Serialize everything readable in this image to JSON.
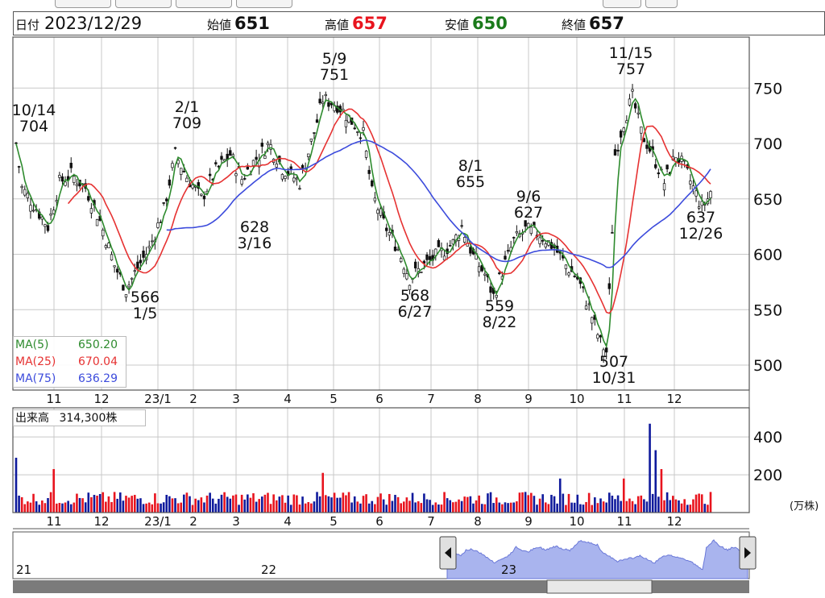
{
  "header": {
    "date_label": "日付",
    "date": "2023/12/29",
    "open_label": "始値",
    "open": "651",
    "high_label": "高値",
    "high": "657",
    "low_label": "安値",
    "low": "650",
    "close_label": "終値",
    "close": "657"
  },
  "colors": {
    "up": "#e8141e",
    "down": "#0f1a9c",
    "ma5": "#2e8b2e",
    "ma25": "#e63232",
    "ma75": "#3c4bdc",
    "high": "#e8141e",
    "low": "#1a7a1a",
    "navigator_fill": "#a9b4ee"
  },
  "ma_legend": [
    {
      "label": "MA(5)",
      "value": "650.20",
      "color": "#2e8b2e"
    },
    {
      "label": "MA(25)",
      "value": "670.04",
      "color": "#e63232"
    },
    {
      "label": "MA(75)",
      "value": "636.29",
      "color": "#3c4bdc"
    }
  ],
  "volume_legend": {
    "label": "出来高",
    "value": "314,300株"
  },
  "volume_unit": "(万株)",
  "navigator": {
    "year_labels": [
      "21",
      "22",
      "23"
    ]
  },
  "chart_data": {
    "type": "candlestick",
    "price_axis": {
      "ticks": [
        500,
        550,
        600,
        650,
        700,
        750
      ],
      "range": [
        492,
        790
      ]
    },
    "volume_axis": {
      "ticks": [
        200,
        400
      ],
      "range": [
        0,
        520
      ],
      "unit": "万株"
    },
    "month_labels": [
      "11",
      "12",
      "23/1",
      "2",
      "3",
      "4",
      "5",
      "6",
      "7",
      "8",
      "9",
      "10",
      "11",
      "12"
    ],
    "moving_averages": [
      {
        "name": "MA(5)",
        "value": 650.2
      },
      {
        "name": "MA(25)",
        "value": 670.04
      },
      {
        "name": "MA(75)",
        "value": 636.29
      }
    ],
    "annotations": [
      {
        "date": "10/14",
        "value": 704
      },
      {
        "date": "1/5",
        "value": 566
      },
      {
        "date": "2/1",
        "value": 709
      },
      {
        "date": "3/16",
        "value": 628
      },
      {
        "date": "5/9",
        "value": 751
      },
      {
        "date": "6/27",
        "value": 568
      },
      {
        "date": "8/1",
        "value": 655
      },
      {
        "date": "8/22",
        "value": 559
      },
      {
        "date": "9/6",
        "value": 627
      },
      {
        "date": "10/31",
        "value": 507
      },
      {
        "date": "11/15",
        "value": 757
      },
      {
        "date": "12/26",
        "value": 637
      }
    ],
    "price_path": [
      {
        "day": 0,
        "close": 700
      },
      {
        "day": 4,
        "close": 660
      },
      {
        "day": 12,
        "close": 645
      },
      {
        "day": 22,
        "close": 625
      },
      {
        "day": 30,
        "close": 665
      },
      {
        "day": 38,
        "close": 672
      },
      {
        "day": 48,
        "close": 660
      },
      {
        "day": 58,
        "close": 630
      },
      {
        "day": 68,
        "close": 590
      },
      {
        "day": 76,
        "close": 568
      },
      {
        "day": 84,
        "close": 588
      },
      {
        "day": 92,
        "close": 605
      },
      {
        "day": 102,
        "close": 640
      },
      {
        "day": 110,
        "close": 690
      },
      {
        "day": 118,
        "close": 670
      },
      {
        "day": 128,
        "close": 650
      },
      {
        "day": 138,
        "close": 675
      },
      {
        "day": 148,
        "close": 690
      },
      {
        "day": 156,
        "close": 668
      },
      {
        "day": 165,
        "close": 685
      },
      {
        "day": 175,
        "close": 700
      },
      {
        "day": 184,
        "close": 678
      },
      {
        "day": 196,
        "close": 665
      },
      {
        "day": 206,
        "close": 710
      },
      {
        "day": 212,
        "close": 740
      },
      {
        "day": 222,
        "close": 735
      },
      {
        "day": 232,
        "close": 720
      },
      {
        "day": 240,
        "close": 708
      },
      {
        "day": 246,
        "close": 655
      },
      {
        "day": 254,
        "close": 628
      },
      {
        "day": 264,
        "close": 605
      },
      {
        "day": 272,
        "close": 578
      },
      {
        "day": 282,
        "close": 590
      },
      {
        "day": 292,
        "close": 600
      },
      {
        "day": 302,
        "close": 610
      },
      {
        "day": 308,
        "close": 625
      },
      {
        "day": 316,
        "close": 598
      },
      {
        "day": 324,
        "close": 582
      },
      {
        "day": 330,
        "close": 562
      },
      {
        "day": 336,
        "close": 585
      },
      {
        "day": 344,
        "close": 612
      },
      {
        "day": 352,
        "close": 622
      },
      {
        "day": 362,
        "close": 618
      },
      {
        "day": 372,
        "close": 606
      },
      {
        "day": 380,
        "close": 590
      },
      {
        "day": 388,
        "close": 578
      },
      {
        "day": 396,
        "close": 552
      },
      {
        "day": 404,
        "close": 520
      },
      {
        "day": 408,
        "close": 512
      },
      {
        "day": 411,
        "close": 590
      },
      {
        "day": 414,
        "close": 690
      },
      {
        "day": 420,
        "close": 720
      },
      {
        "day": 426,
        "close": 742
      },
      {
        "day": 432,
        "close": 710
      },
      {
        "day": 440,
        "close": 690
      },
      {
        "day": 448,
        "close": 665
      },
      {
        "day": 456,
        "close": 690
      },
      {
        "day": 462,
        "close": 678
      },
      {
        "day": 468,
        "close": 660
      },
      {
        "day": 474,
        "close": 642
      },
      {
        "day": 478,
        "close": 650
      },
      {
        "day": 480,
        "close": 657
      }
    ]
  }
}
